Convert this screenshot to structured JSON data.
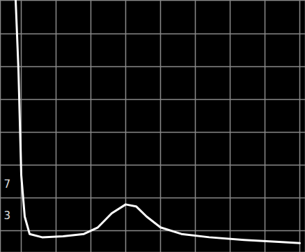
{
  "chart_data": {
    "type": "line",
    "color": "#ffffff",
    "grid": true,
    "tick_labels": false,
    "xlim": [
      -0.6,
      8.16
    ],
    "ylim": [
      -0.66,
      7.02
    ],
    "xticks": [
      0,
      1,
      2,
      3,
      4,
      5,
      6,
      7,
      8
    ],
    "yticks": [
      0,
      1,
      2,
      3,
      4,
      5,
      6
    ],
    "x": [
      -0.16,
      -0.08,
      0,
      0.1,
      0.24,
      0.6,
      1.2,
      1.8,
      2.2,
      2.6,
      3.0,
      3.3,
      3.6,
      4.0,
      4.6,
      5.4,
      6.4,
      7.4,
      8.0
    ],
    "values": [
      7.02,
      4.9,
      1.7,
      0.43,
      -0.1,
      -0.2,
      -0.17,
      -0.1,
      0.1,
      0.53,
      0.8,
      0.74,
      0.43,
      0.1,
      -0.1,
      -0.2,
      -0.28,
      -0.34,
      -0.38
    ],
    "annotations": [
      {
        "text": "7",
        "x": -0.5,
        "y": 1.4
      },
      {
        "text": "3",
        "x": -0.5,
        "y": 0.45
      }
    ]
  }
}
